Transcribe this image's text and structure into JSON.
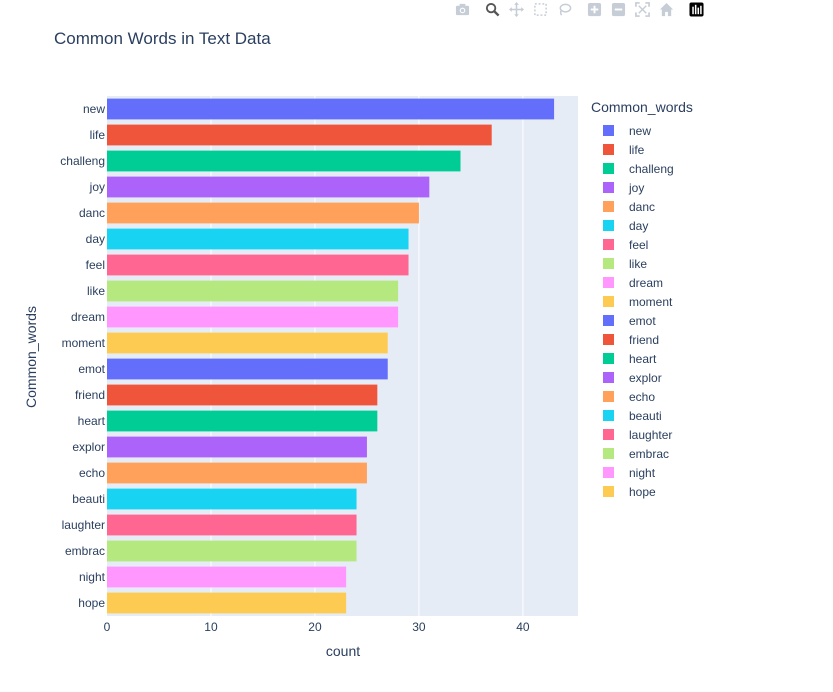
{
  "modebar": {
    "icons": [
      "camera-icon",
      "zoom-icon",
      "pan-icon",
      "box-select-icon",
      "lasso-icon",
      "zoom-in-icon",
      "zoom-out-icon",
      "autoscale-icon",
      "reset-axes-icon",
      "plotly-logo-icon"
    ]
  },
  "chart_data": {
    "type": "bar",
    "orientation": "horizontal",
    "title": "Common Words in Text Data",
    "xlabel": "count",
    "ylabel": "Common_words",
    "xlim": [
      0,
      45.3
    ],
    "xticks": [
      0,
      10,
      20,
      30,
      40
    ],
    "grid": true,
    "legend_title": "Common_words",
    "legend_position": "right",
    "categories": [
      "new",
      "life",
      "challeng",
      "joy",
      "danc",
      "day",
      "feel",
      "like",
      "dream",
      "moment",
      "emot",
      "friend",
      "heart",
      "explor",
      "echo",
      "beauti",
      "laughter",
      "embrac",
      "night",
      "hope"
    ],
    "values": [
      43,
      37,
      34,
      31,
      30,
      29,
      29,
      28,
      28,
      27,
      27,
      26,
      26,
      25,
      25,
      24,
      24,
      24,
      23,
      23
    ],
    "colors": [
      "#636efa",
      "#EF553B",
      "#00cc96",
      "#ab63fa",
      "#FFA15A",
      "#19d3f3",
      "#FF6692",
      "#B6E880",
      "#FF97FF",
      "#FECB52",
      "#636efa",
      "#EF553B",
      "#00cc96",
      "#ab63fa",
      "#FFA15A",
      "#19d3f3",
      "#FF6692",
      "#B6E880",
      "#FF97FF",
      "#FECB52"
    ],
    "plot_bgcolor": "#E5ECF6"
  }
}
